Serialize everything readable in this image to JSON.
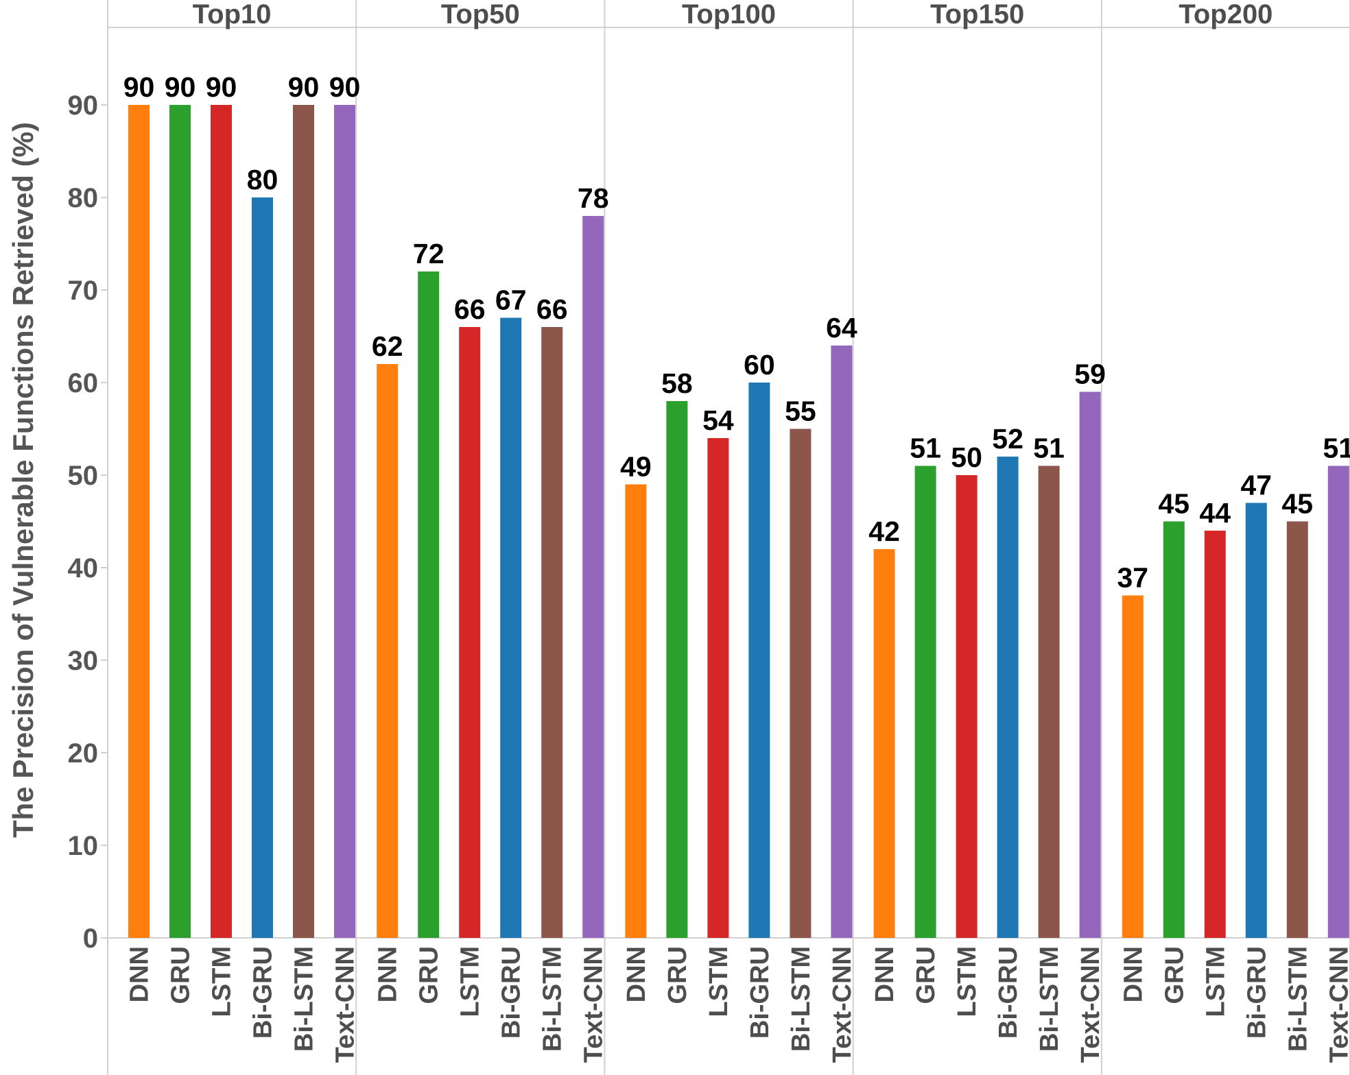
{
  "chart_data": {
    "type": "bar",
    "title": "",
    "ylabel": "The Precision of Vulnerable Functions Retrieved (%)",
    "xlabel": "",
    "ylim": [
      0,
      100
    ],
    "yticks": [
      0,
      10,
      20,
      30,
      40,
      50,
      60,
      70,
      80,
      90
    ],
    "panels": [
      "Top10",
      "Top50",
      "Top100",
      "Top150",
      "Top200"
    ],
    "categories": [
      "DNN",
      "GRU",
      "LSTM",
      "Bi-GRU",
      "Bi-LSTM",
      "Text-CNN"
    ],
    "colors": {
      "DNN": "#ff7f0e",
      "GRU": "#2ca02c",
      "LSTM": "#d62728",
      "Bi-GRU": "#1f77b4",
      "Bi-LSTM": "#8c564b",
      "Text-CNN": "#9467bd"
    },
    "series": [
      {
        "name": "Top10",
        "values": [
          90,
          90,
          90,
          80,
          90,
          90
        ]
      },
      {
        "name": "Top50",
        "values": [
          62,
          72,
          66,
          67,
          66,
          78
        ]
      },
      {
        "name": "Top100",
        "values": [
          49,
          58,
          54,
          60,
          55,
          64
        ]
      },
      {
        "name": "Top150",
        "values": [
          42,
          51,
          50,
          52,
          51,
          59
        ]
      },
      {
        "name": "Top200",
        "values": [
          37,
          45,
          44,
          47,
          45,
          51
        ]
      }
    ]
  }
}
